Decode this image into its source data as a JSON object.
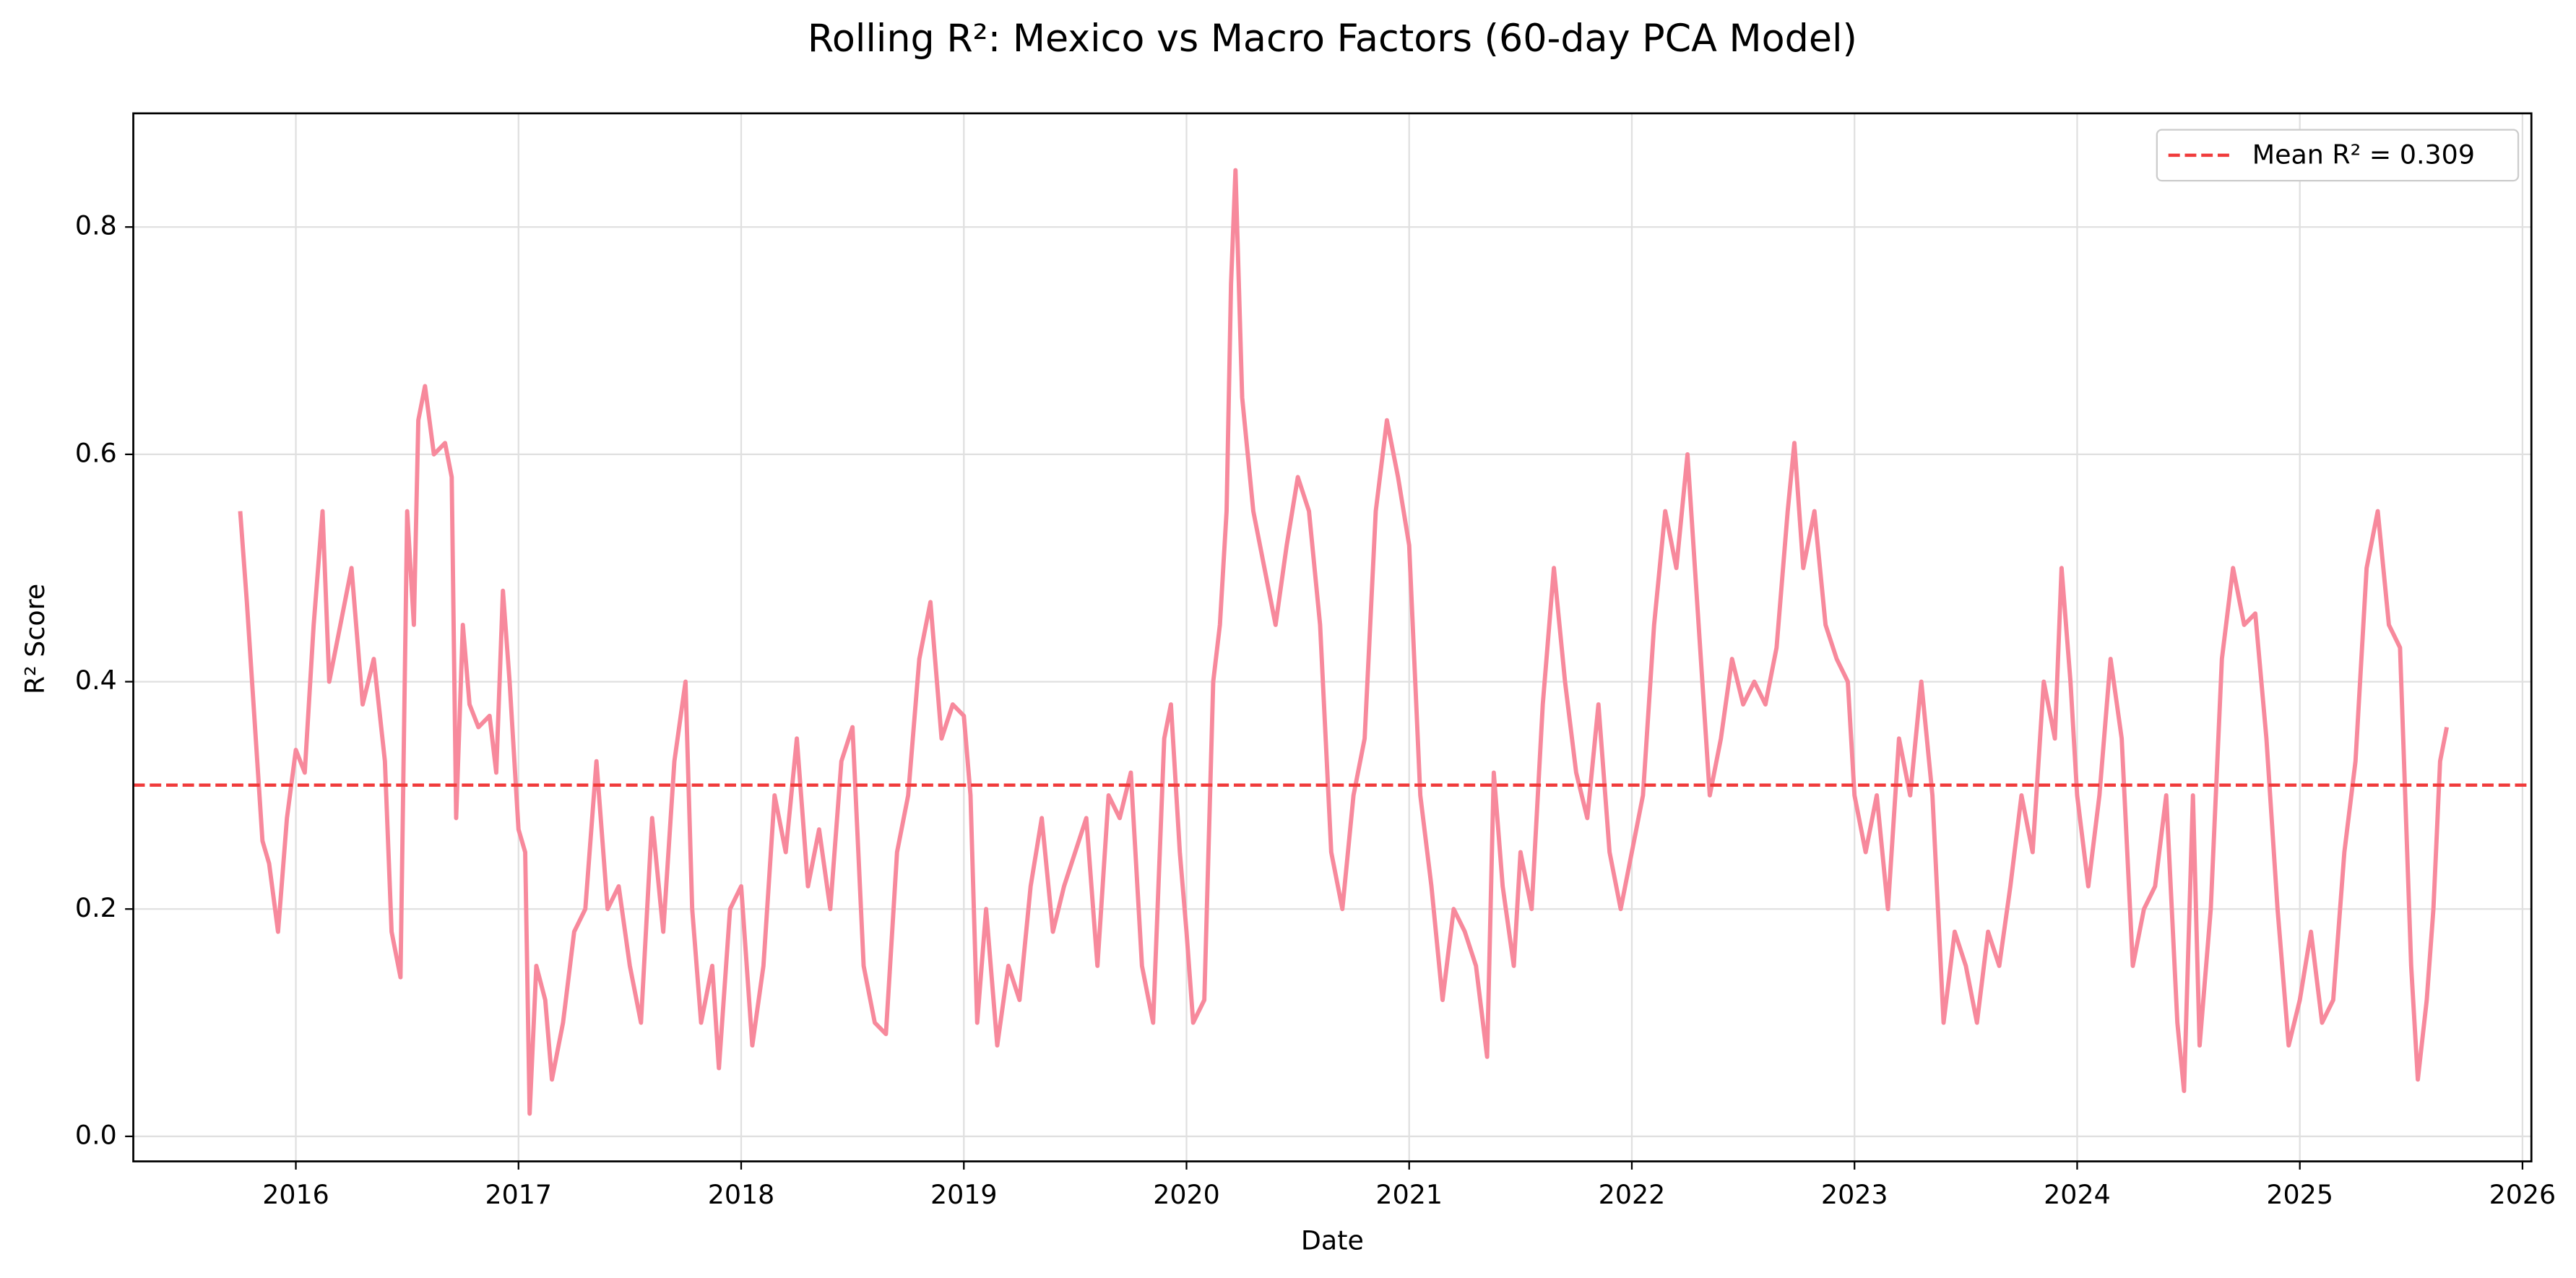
{
  "chart_data": {
    "type": "line",
    "title": "Rolling R²: Mexico vs Macro Factors (60-day PCA Model)",
    "xlabel": "Date",
    "ylabel": "R² Score",
    "x": [
      2015.75,
      2015.78,
      2015.82,
      2015.85,
      2015.88,
      2015.92,
      2015.96,
      2016.0,
      2016.04,
      2016.08,
      2016.12,
      2016.15,
      2016.2,
      2016.25,
      2016.3,
      2016.35,
      2016.4,
      2016.43,
      2016.47,
      2016.5,
      2016.53,
      2016.55,
      2016.58,
      2016.62,
      2016.67,
      2016.7,
      2016.72,
      2016.75,
      2016.78,
      2016.82,
      2016.87,
      2016.9,
      2016.93,
      2016.96,
      2017.0,
      2017.03,
      2017.05,
      2017.08,
      2017.12,
      2017.15,
      2017.2,
      2017.25,
      2017.3,
      2017.35,
      2017.4,
      2017.45,
      2017.5,
      2017.55,
      2017.6,
      2017.65,
      2017.7,
      2017.75,
      2017.78,
      2017.82,
      2017.87,
      2017.9,
      2017.95,
      2018.0,
      2018.05,
      2018.1,
      2018.15,
      2018.2,
      2018.25,
      2018.3,
      2018.35,
      2018.4,
      2018.45,
      2018.5,
      2018.55,
      2018.6,
      2018.65,
      2018.7,
      2018.75,
      2018.8,
      2018.85,
      2018.9,
      2018.95,
      2019.0,
      2019.03,
      2019.06,
      2019.1,
      2019.15,
      2019.2,
      2019.25,
      2019.3,
      2019.35,
      2019.4,
      2019.45,
      2019.5,
      2019.55,
      2019.6,
      2019.65,
      2019.7,
      2019.75,
      2019.8,
      2019.85,
      2019.9,
      2019.93,
      2019.97,
      2020.0,
      2020.03,
      2020.08,
      2020.12,
      2020.15,
      2020.18,
      2020.2,
      2020.22,
      2020.25,
      2020.3,
      2020.35,
      2020.4,
      2020.45,
      2020.5,
      2020.55,
      2020.6,
      2020.65,
      2020.7,
      2020.75,
      2020.8,
      2020.85,
      2020.9,
      2020.95,
      2021.0,
      2021.05,
      2021.1,
      2021.15,
      2021.2,
      2021.25,
      2021.3,
      2021.35,
      2021.38,
      2021.42,
      2021.47,
      2021.5,
      2021.55,
      2021.6,
      2021.65,
      2021.7,
      2021.75,
      2021.8,
      2021.85,
      2021.9,
      2021.95,
      2022.0,
      2022.05,
      2022.1,
      2022.15,
      2022.2,
      2022.25,
      2022.3,
      2022.35,
      2022.4,
      2022.45,
      2022.5,
      2022.55,
      2022.6,
      2022.65,
      2022.7,
      2022.73,
      2022.77,
      2022.82,
      2022.87,
      2022.92,
      2022.97,
      2023.0,
      2023.05,
      2023.1,
      2023.15,
      2023.2,
      2023.25,
      2023.3,
      2023.35,
      2023.4,
      2023.45,
      2023.5,
      2023.55,
      2023.6,
      2023.65,
      2023.7,
      2023.75,
      2023.8,
      2023.85,
      2023.9,
      2023.93,
      2023.97,
      2024.0,
      2024.05,
      2024.1,
      2024.15,
      2024.2,
      2024.25,
      2024.3,
      2024.35,
      2024.4,
      2024.45,
      2024.48,
      2024.52,
      2024.55,
      2024.6,
      2024.65,
      2024.7,
      2024.75,
      2024.8,
      2024.85,
      2024.9,
      2024.95,
      2025.0,
      2025.05,
      2025.1,
      2025.15,
      2025.2,
      2025.25,
      2025.3,
      2025.35,
      2025.4,
      2025.45,
      2025.5,
      2025.53,
      2025.57,
      2025.6,
      2025.63,
      2025.66
    ],
    "values": [
      0.55,
      0.47,
      0.35,
      0.26,
      0.24,
      0.18,
      0.28,
      0.34,
      0.32,
      0.45,
      0.55,
      0.4,
      0.45,
      0.5,
      0.38,
      0.42,
      0.33,
      0.18,
      0.14,
      0.55,
      0.45,
      0.63,
      0.66,
      0.6,
      0.61,
      0.58,
      0.28,
      0.45,
      0.38,
      0.36,
      0.37,
      0.32,
      0.48,
      0.4,
      0.27,
      0.25,
      0.02,
      0.15,
      0.12,
      0.05,
      0.1,
      0.18,
      0.2,
      0.33,
      0.2,
      0.22,
      0.15,
      0.1,
      0.28,
      0.18,
      0.33,
      0.4,
      0.2,
      0.1,
      0.15,
      0.06,
      0.2,
      0.22,
      0.08,
      0.15,
      0.3,
      0.25,
      0.35,
      0.22,
      0.27,
      0.2,
      0.33,
      0.36,
      0.15,
      0.1,
      0.09,
      0.25,
      0.3,
      0.42,
      0.47,
      0.35,
      0.38,
      0.37,
      0.3,
      0.1,
      0.2,
      0.08,
      0.15,
      0.12,
      0.22,
      0.28,
      0.18,
      0.22,
      0.25,
      0.28,
      0.15,
      0.3,
      0.28,
      0.32,
      0.15,
      0.1,
      0.35,
      0.38,
      0.25,
      0.18,
      0.1,
      0.12,
      0.4,
      0.45,
      0.55,
      0.75,
      0.85,
      0.65,
      0.55,
      0.5,
      0.45,
      0.52,
      0.58,
      0.55,
      0.45,
      0.25,
      0.2,
      0.3,
      0.35,
      0.55,
      0.63,
      0.58,
      0.52,
      0.3,
      0.22,
      0.12,
      0.2,
      0.18,
      0.15,
      0.07,
      0.32,
      0.22,
      0.15,
      0.25,
      0.2,
      0.38,
      0.5,
      0.4,
      0.32,
      0.28,
      0.38,
      0.25,
      0.2,
      0.25,
      0.3,
      0.45,
      0.55,
      0.5,
      0.6,
      0.45,
      0.3,
      0.35,
      0.42,
      0.38,
      0.4,
      0.38,
      0.43,
      0.55,
      0.61,
      0.5,
      0.55,
      0.45,
      0.42,
      0.4,
      0.3,
      0.25,
      0.3,
      0.2,
      0.35,
      0.3,
      0.4,
      0.3,
      0.1,
      0.18,
      0.15,
      0.1,
      0.18,
      0.15,
      0.22,
      0.3,
      0.25,
      0.4,
      0.35,
      0.5,
      0.4,
      0.3,
      0.22,
      0.3,
      0.42,
      0.35,
      0.15,
      0.2,
      0.22,
      0.3,
      0.1,
      0.04,
      0.3,
      0.08,
      0.2,
      0.42,
      0.5,
      0.45,
      0.46,
      0.35,
      0.2,
      0.08,
      0.12,
      0.18,
      0.1,
      0.12,
      0.25,
      0.33,
      0.5,
      0.55,
      0.45,
      0.43,
      0.15,
      0.05,
      0.12,
      0.2,
      0.33,
      0.36
    ],
    "color": "#f7899c",
    "mean_line": {
      "value": 0.309,
      "label": "Mean R² = 0.309",
      "color": "#f03c3c"
    },
    "xlim": [
      2015.27,
      2026.04
    ],
    "xticks": [
      2016,
      2017,
      2018,
      2019,
      2020,
      2021,
      2022,
      2023,
      2024,
      2025,
      2026
    ],
    "ylim": [
      -0.022,
      0.9
    ],
    "yticks": [
      {
        "value": 0,
        "label": "0.0"
      },
      0.2,
      0.4,
      0.6,
      0.8
    ],
    "grid": true,
    "legend": "upper right"
  }
}
